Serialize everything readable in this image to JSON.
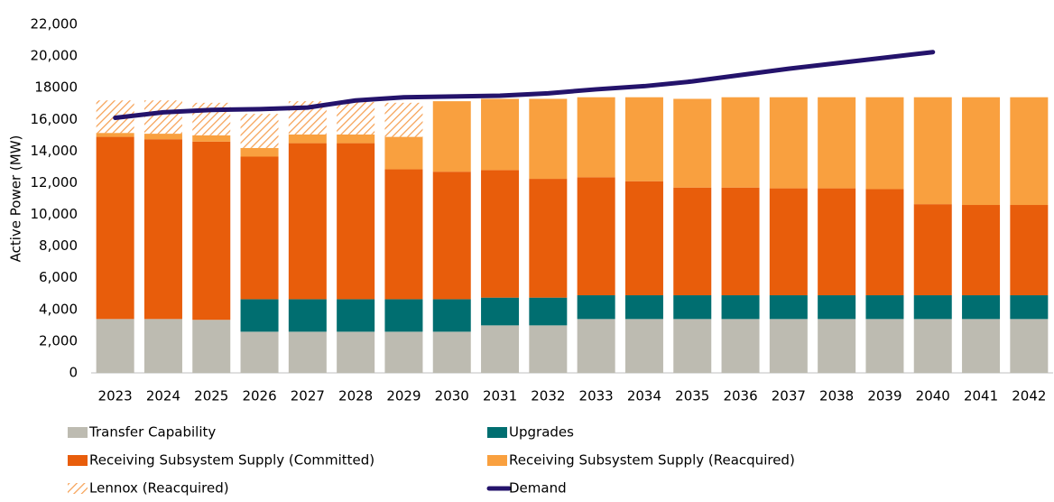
{
  "chart_data": {
    "type": "bar",
    "stacked": true,
    "y_label": "Active Power (MW)",
    "categories": [
      "2023",
      "2024",
      "2025",
      "2026",
      "2027",
      "2028",
      "2029",
      "2030",
      "2031",
      "2032",
      "2033",
      "2034",
      "2035",
      "2036",
      "2037",
      "2038",
      "2039",
      "2040",
      "2041",
      "2042"
    ],
    "ylim": [
      0,
      22000
    ],
    "yticks": [
      0,
      {
        "value": 2000,
        "label": "2,000"
      },
      {
        "value": 4000,
        "label": "4,000"
      },
      {
        "value": 6000,
        "label": "6,000"
      },
      {
        "value": 8000,
        "label": "8,000"
      },
      {
        "value": 10000,
        "label": "10,000"
      },
      {
        "value": 12000,
        "label": "12,000"
      },
      {
        "value": 14000,
        "label": "14,000"
      },
      {
        "value": 16000,
        "label": "16,000"
      },
      18000,
      {
        "value": 20000,
        "label": "20,000"
      },
      {
        "value": 22000,
        "label": "22,000"
      }
    ],
    "series": [
      {
        "name": "Transfer Capability",
        "color": "#bdbbb1",
        "values": [
          3400,
          3400,
          3350,
          2600,
          2600,
          2600,
          2600,
          2600,
          3000,
          3000,
          3400,
          3400,
          3400,
          3400,
          3400,
          3400,
          3400,
          3400,
          3400,
          3400
        ]
      },
      {
        "name": "Upgrades",
        "color": "#006e70",
        "values": [
          0,
          0,
          0,
          2050,
          2050,
          2050,
          2050,
          2050,
          1750,
          1750,
          1500,
          1500,
          1500,
          1500,
          1500,
          1500,
          1500,
          1500,
          1500,
          1500
        ]
      },
      {
        "name": "Receiving Subsystem Supply (Committed)",
        "color": "#e85d0b",
        "values": [
          11500,
          11350,
          11250,
          9000,
          9850,
          9850,
          8200,
          8050,
          8050,
          7500,
          7450,
          7200,
          6800,
          6800,
          6750,
          6750,
          6700,
          5750,
          5700,
          5700
        ]
      },
      {
        "name": "Receiving Subsystem Supply (Reacquired)",
        "color": "#f9a03f",
        "values": [
          250,
          350,
          400,
          550,
          550,
          550,
          2050,
          4450,
          4500,
          5050,
          5050,
          5300,
          5600,
          5700,
          5750,
          5750,
          5800,
          6750,
          6800,
          6800
        ]
      },
      {
        "name": "Lennox (Reacquired)",
        "color": "#f6a155",
        "hatch": true,
        "values": [
          2050,
          2100,
          2050,
          2150,
          2100,
          2050,
          2150,
          0,
          0,
          0,
          0,
          0,
          0,
          0,
          0,
          0,
          0,
          0,
          0,
          0
        ]
      },
      {
        "name": "Demand",
        "color": "#24136b",
        "kind": "line",
        "values": [
          16100,
          16450,
          16600,
          16650,
          16750,
          17200,
          17400,
          17450,
          17500,
          17650,
          17900,
          18100,
          18400,
          18800,
          19200,
          19550,
          19900,
          20250,
          null,
          null
        ]
      }
    ]
  }
}
